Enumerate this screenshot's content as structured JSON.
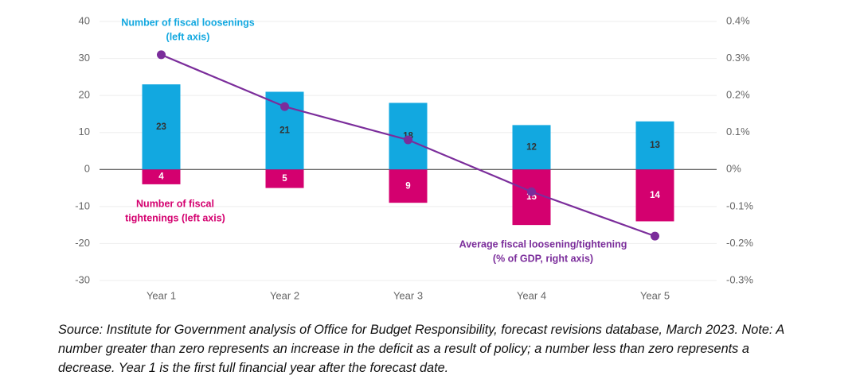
{
  "chart_data": {
    "type": "bar",
    "categories": [
      "Year 1",
      "Year 2",
      "Year 3",
      "Year 4",
      "Year 5"
    ],
    "series": [
      {
        "name": "Number of fiscal loosenings (left axis)",
        "type": "bar",
        "color": "#12a8e0",
        "label_color": "#333333",
        "values": [
          23,
          21,
          18,
          12,
          13
        ]
      },
      {
        "name": "Number of fiscal tightenings (left axis)",
        "type": "bar",
        "color": "#d4006f",
        "label_color": "#ffffff",
        "values": [
          -4,
          -5,
          -9,
          -15,
          -14
        ],
        "value_labels": [
          "4",
          "5",
          "9",
          "15",
          "14"
        ]
      },
      {
        "name": "Average fiscal loosening/tightening (% of GDP, right axis)",
        "type": "line",
        "axis": "y2",
        "color": "#7b2d9b",
        "values": [
          0.31,
          0.17,
          0.08,
          -0.06,
          -0.18
        ]
      }
    ],
    "annotations": [
      {
        "lines": [
          "Number of fiscal loosenings",
          "(left axis)"
        ],
        "color": "#12a8e0"
      },
      {
        "lines": [
          "Number of fiscal",
          "tightenings  (left axis)"
        ],
        "color": "#d4006f"
      },
      {
        "lines": [
          "Average fiscal loosening/tightening",
          "(% of GDP, right axis)"
        ],
        "color": "#7b2d9b"
      }
    ],
    "ylim": [
      -30,
      40
    ],
    "yticks": [
      -30,
      -20,
      -10,
      0,
      10,
      20,
      30,
      40
    ],
    "y2lim": [
      -0.3,
      0.4
    ],
    "y2ticks": [
      {
        "value": -0.3,
        "label": "-0.3%"
      },
      {
        "value": -0.2,
        "label": "-0.2%"
      },
      {
        "value": -0.1,
        "label": "-0.1%"
      },
      {
        "value": 0,
        "label": "0%"
      },
      {
        "value": 0.1,
        "label": "0.1%"
      },
      {
        "value": 0.2,
        "label": "0.2%"
      },
      {
        "value": 0.3,
        "label": "0.3%"
      },
      {
        "value": 0.4,
        "label": "0.4%"
      }
    ],
    "grid": true,
    "source": "Source: Institute for Government analysis of Office for Budget Responsibility, forecast revisions database, March 2023. Note: A number greater than zero represents an increase in the deficit as a result of policy; a number less than zero represents a decrease. Year 1 is the first full financial year after the forecast date."
  }
}
